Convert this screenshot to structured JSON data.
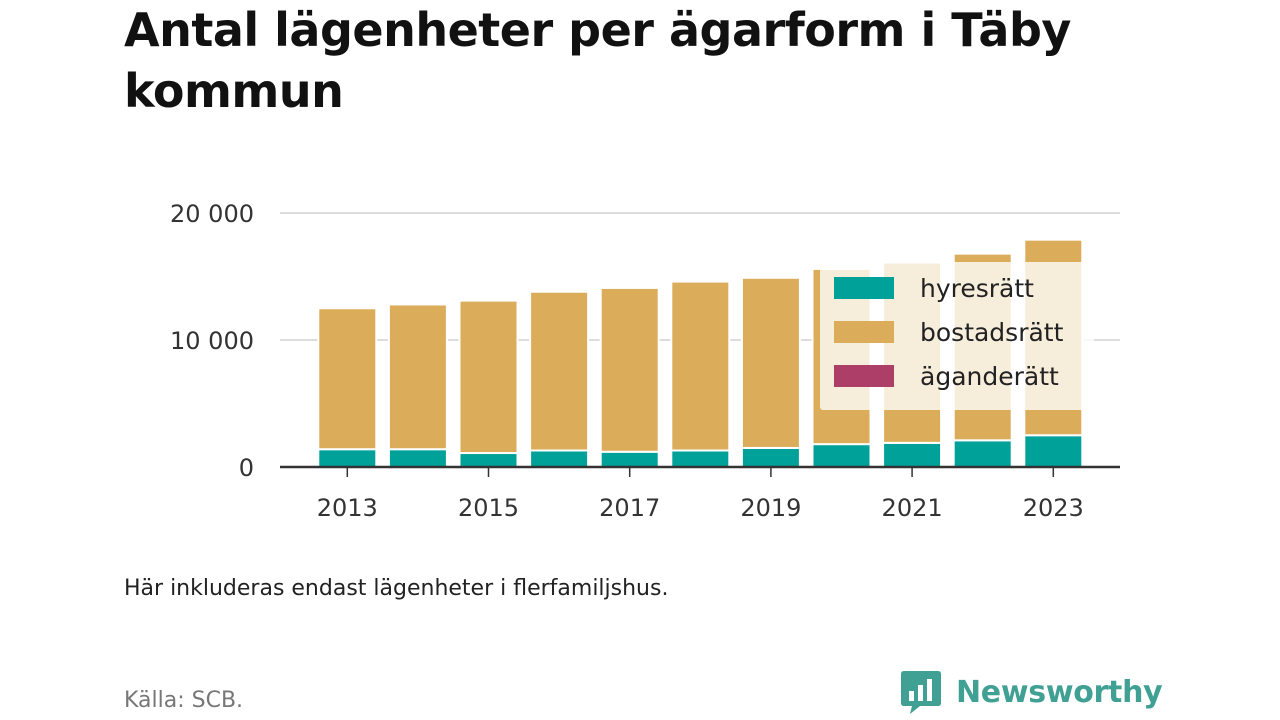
{
  "title": "Antal lägenheter per ägarform i Täby kommun",
  "note": "Här inkluderas endast lägenheter i flerfamiljshus.",
  "source": "Källa: SCB.",
  "brand": {
    "name": "Newsworthy",
    "logo_icon": "bar-chart-speech-bubble-icon",
    "color": "#3fa093"
  },
  "chart_data": {
    "type": "bar",
    "stacked": true,
    "categories": [
      "2013",
      "2014",
      "2015",
      "2016",
      "2017",
      "2018",
      "2019",
      "2020",
      "2021",
      "2022",
      "2023"
    ],
    "x_tick_labels": [
      "2013",
      "2015",
      "2017",
      "2019",
      "2021",
      "2023"
    ],
    "series": [
      {
        "name": "hyresrätt",
        "color": "#00a199",
        "values": [
          1400,
          1400,
          1100,
          1300,
          1200,
          1300,
          1500,
          1800,
          1900,
          2100,
          2500
        ]
      },
      {
        "name": "bostadsrätt",
        "color": "#dbad5b",
        "values": [
          11100,
          11400,
          12000,
          12500,
          12900,
          13300,
          13400,
          13800,
          14200,
          14700,
          15400
        ]
      },
      {
        "name": "äganderätt",
        "color": "#ac3e67",
        "values": [
          0,
          0,
          0,
          0,
          0,
          0,
          0,
          0,
          0,
          0,
          0
        ]
      }
    ],
    "yticks": [
      0,
      10000,
      20000
    ],
    "ytick_labels": [
      "0",
      "10 000",
      "20 000"
    ],
    "ylim": [
      0,
      20000
    ],
    "grid": true,
    "legend_position": "top-right"
  }
}
